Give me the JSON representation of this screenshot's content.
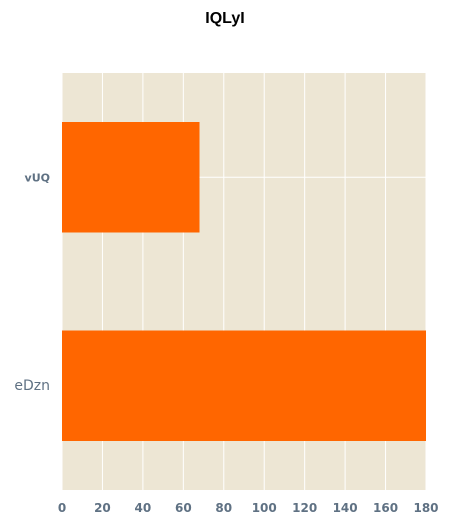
{
  "chart_data": {
    "type": "bar",
    "orientation": "horizontal",
    "title": "IQLyI",
    "categories": [
      "vUQ",
      "eDzn"
    ],
    "values": [
      68,
      180
    ],
    "xlabel": "",
    "ylabel": "",
    "xlim": [
      0,
      180
    ],
    "xticks": [
      0,
      20,
      40,
      60,
      80,
      100,
      120,
      140,
      160,
      180
    ],
    "grid": true,
    "colors": {
      "bar": "#ff6600",
      "plot_bg": "#ede6d4",
      "grid": "#ffffff",
      "tick_text": "#5f7183"
    }
  }
}
